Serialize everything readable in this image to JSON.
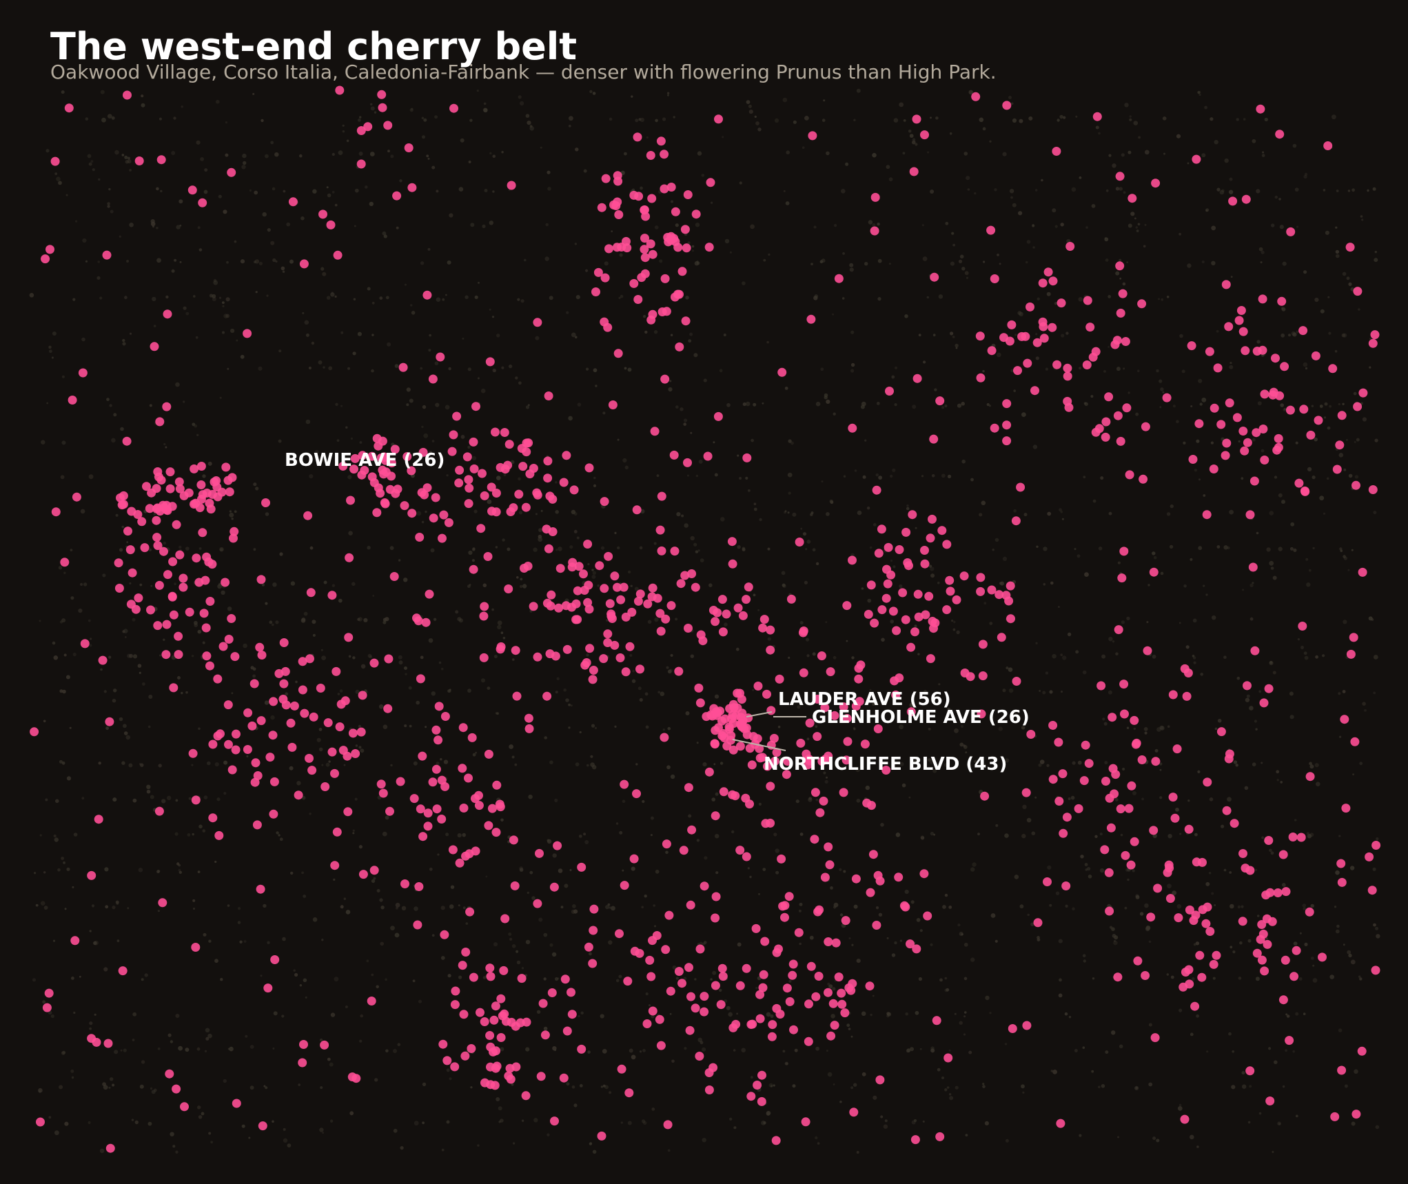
{
  "title": "The west-end cherry belt",
  "subtitle": "Oakwood Village, Corso Italia, Caledonia-Fairbank — denser with flowering Prunus than High Park.",
  "colors": {
    "background": "#13100e",
    "street_tree": "#3a352c",
    "cherry_tree": "#ff4f96",
    "label_text": "#ffffff",
    "leader_line": "#bdb6aa"
  },
  "streets": [
    {
      "name": "BOWIE AVE",
      "count": 26,
      "label": "BOWIE AVE  (26)"
    },
    {
      "name": "LAUDER AVE",
      "count": 56,
      "label": "LAUDER AVE  (56)"
    },
    {
      "name": "GLENHOLME AVE",
      "count": 26,
      "label": "GLENHOLME AVE  (26)"
    },
    {
      "name": "NORTHCLIFFE BLVD",
      "count": 43,
      "label": "NORTHCLIFFE BLVD  (43)"
    }
  ]
}
